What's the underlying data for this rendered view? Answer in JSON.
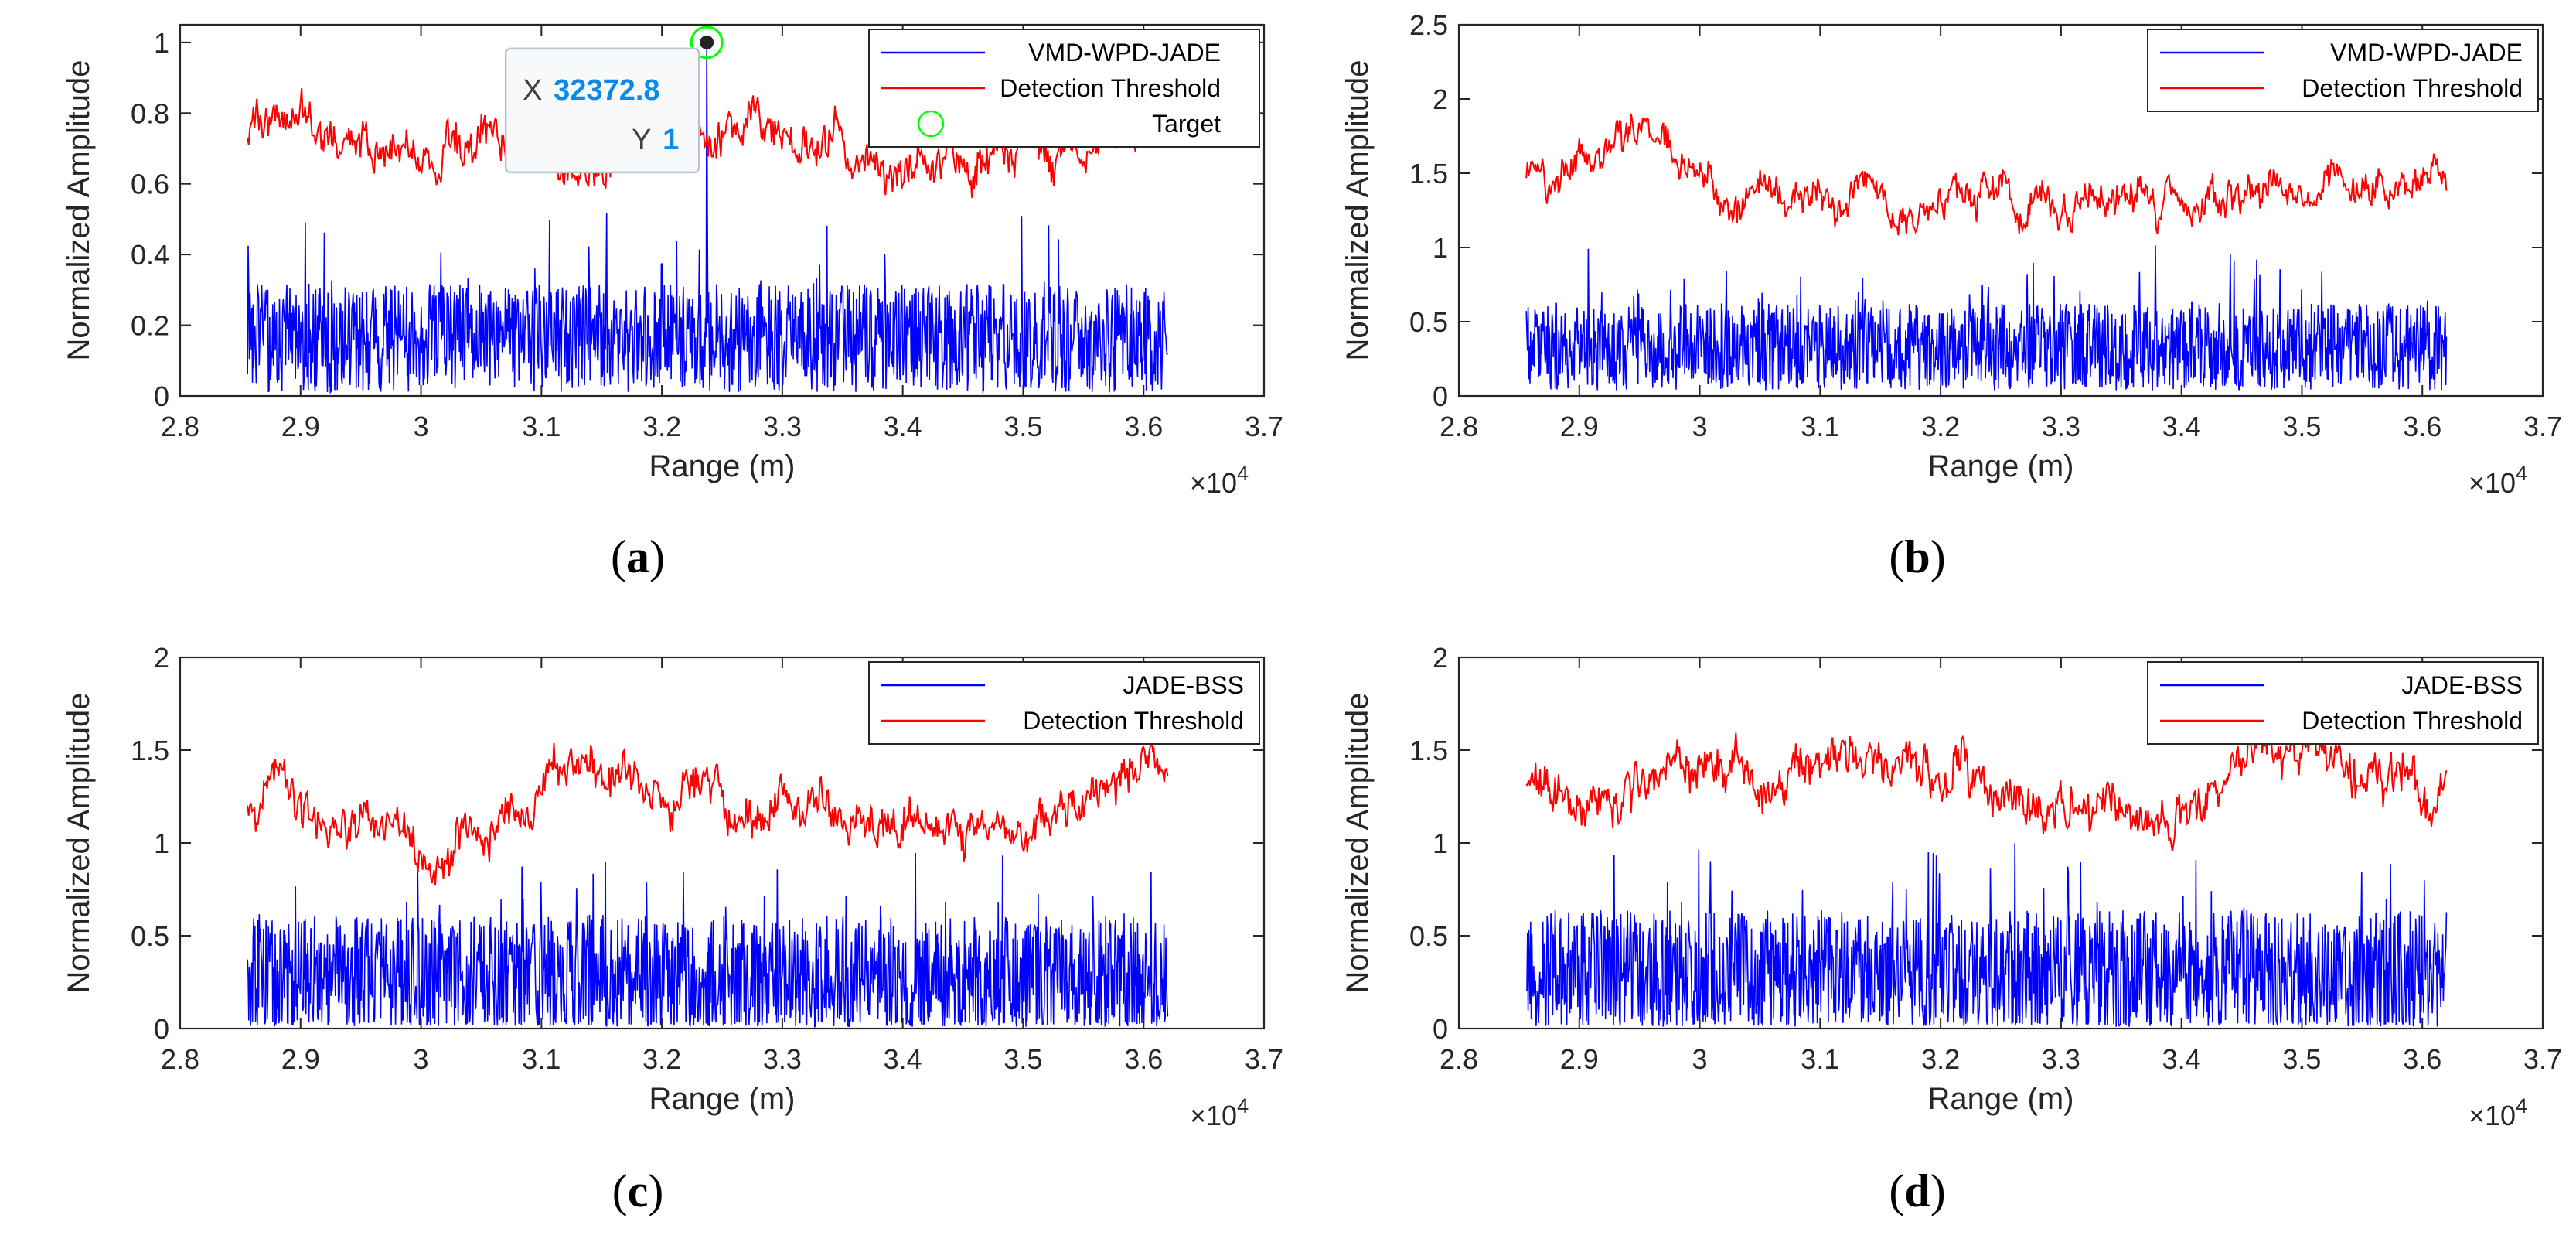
{
  "chart_data": [
    {
      "type": "line",
      "panel_label": "a",
      "xlabel": "Range (m)",
      "ylabel": "Normalized Amplitude",
      "x_exponent_label": "×10",
      "x_exponent": "4",
      "xlim": [
        2.8,
        3.7
      ],
      "ylim": [
        0,
        1.05
      ],
      "xticks": [
        2.8,
        2.9,
        3.0,
        3.1,
        3.2,
        3.3,
        3.4,
        3.5,
        3.6,
        3.7
      ],
      "xtick_labels": [
        "2.8",
        "2.9",
        "3",
        "3.1",
        "3.2",
        "3.3",
        "3.4",
        "3.5",
        "3.6",
        "3.7"
      ],
      "yticks": [
        0,
        0.2,
        0.4,
        0.6,
        0.8,
        1.0
      ],
      "ytick_labels": [
        "0",
        "0.2",
        "0.4",
        "0.6",
        "0.8",
        "1"
      ],
      "x_range": [
        2.856,
        3.62
      ],
      "grid": false,
      "legend_position": "top-right",
      "series": [
        {
          "name": "VMD-WPD-JADE",
          "color": "#0000ff",
          "kind": "clutter",
          "base": 0.16,
          "spread": 0.24,
          "seed": 11
        },
        {
          "name": "Detection Threshold",
          "color": "#ff0000",
          "kind": "threshold",
          "base": 0.72,
          "spread": 0.15,
          "seed": 12
        },
        {
          "name": "Target",
          "color": "#00ff00",
          "kind": "marker",
          "x": 3.23728,
          "y": 1.0
        }
      ],
      "peak": {
        "x": 3.23728,
        "y": 1.0
      },
      "datatip": {
        "x_key": "X",
        "x_value": "32372.8",
        "y_key": "Y",
        "y_value": "1"
      }
    },
    {
      "type": "line",
      "panel_label": "b",
      "xlabel": "Range (m)",
      "ylabel": "Normalized Amplitude",
      "x_exponent_label": "×10",
      "x_exponent": "4",
      "xlim": [
        2.8,
        3.7
      ],
      "ylim": [
        0,
        2.5
      ],
      "xticks": [
        2.8,
        2.9,
        3.0,
        3.1,
        3.2,
        3.3,
        3.4,
        3.5,
        3.6,
        3.7
      ],
      "xtick_labels": [
        "2.8",
        "2.9",
        "3",
        "3.1",
        "3.2",
        "3.3",
        "3.4",
        "3.5",
        "3.6",
        "3.7"
      ],
      "yticks": [
        0,
        0.5,
        1.0,
        1.5,
        2.0,
        2.5
      ],
      "ytick_labels": [
        "0",
        "0.5",
        "1",
        "1.5",
        "2",
        "2.5"
      ],
      "x_range": [
        2.856,
        3.62
      ],
      "grid": false,
      "legend_position": "top-right",
      "series": [
        {
          "name": "VMD-WPD-JADE",
          "color": "#0000ff",
          "kind": "clutter",
          "base": 0.33,
          "spread": 0.45,
          "seed": 21
        },
        {
          "name": "Detection Threshold",
          "color": "#ff0000",
          "kind": "threshold",
          "base": 1.38,
          "spread": 0.3,
          "seed": 22
        }
      ]
    },
    {
      "type": "line",
      "panel_label": "c",
      "xlabel": "Range (m)",
      "ylabel": "Normalized Amplitude",
      "x_exponent_label": "×10",
      "x_exponent": "4",
      "xlim": [
        2.8,
        3.7
      ],
      "ylim": [
        0,
        2
      ],
      "xticks": [
        2.8,
        2.9,
        3.0,
        3.1,
        3.2,
        3.3,
        3.4,
        3.5,
        3.6,
        3.7
      ],
      "xtick_labels": [
        "2.8",
        "2.9",
        "3",
        "3.1",
        "3.2",
        "3.3",
        "3.4",
        "3.5",
        "3.6",
        "3.7"
      ],
      "yticks": [
        0,
        0.5,
        1.0,
        1.5,
        2.0
      ],
      "ytick_labels": [
        "0",
        "0.5",
        "1",
        "1.5",
        "2"
      ],
      "x_range": [
        2.856,
        3.62
      ],
      "grid": false,
      "legend_position": "top-right",
      "series": [
        {
          "name": "JADE-BSS",
          "color": "#0000ff",
          "kind": "clutter",
          "base": 0.28,
          "spread": 0.5,
          "seed": 31
        },
        {
          "name": "Detection Threshold",
          "color": "#ff0000",
          "kind": "threshold",
          "base": 1.22,
          "spread": 0.28,
          "seed": 32
        }
      ]
    },
    {
      "type": "line",
      "panel_label": "d",
      "xlabel": "Range (m)",
      "ylabel": "Normalized Amplitude",
      "x_exponent_label": "×10",
      "x_exponent": "4",
      "xlim": [
        2.8,
        3.7
      ],
      "ylim": [
        0,
        2
      ],
      "xticks": [
        2.8,
        2.9,
        3.0,
        3.1,
        3.2,
        3.3,
        3.4,
        3.5,
        3.6,
        3.7
      ],
      "xtick_labels": [
        "2.8",
        "2.9",
        "3",
        "3.1",
        "3.2",
        "3.3",
        "3.4",
        "3.5",
        "3.6",
        "3.7"
      ],
      "yticks": [
        0,
        0.5,
        1.0,
        1.5,
        2.0
      ],
      "ytick_labels": [
        "0",
        "0.5",
        "1",
        "1.5",
        "2"
      ],
      "x_range": [
        2.856,
        3.62
      ],
      "grid": false,
      "legend_position": "top-right",
      "series": [
        {
          "name": "JADE-BSS",
          "color": "#0000ff",
          "kind": "clutter",
          "base": 0.3,
          "spread": 0.52,
          "seed": 41
        },
        {
          "name": "Detection Threshold",
          "color": "#ff0000",
          "kind": "threshold",
          "base": 1.35,
          "spread": 0.3,
          "seed": 42
        }
      ]
    }
  ]
}
